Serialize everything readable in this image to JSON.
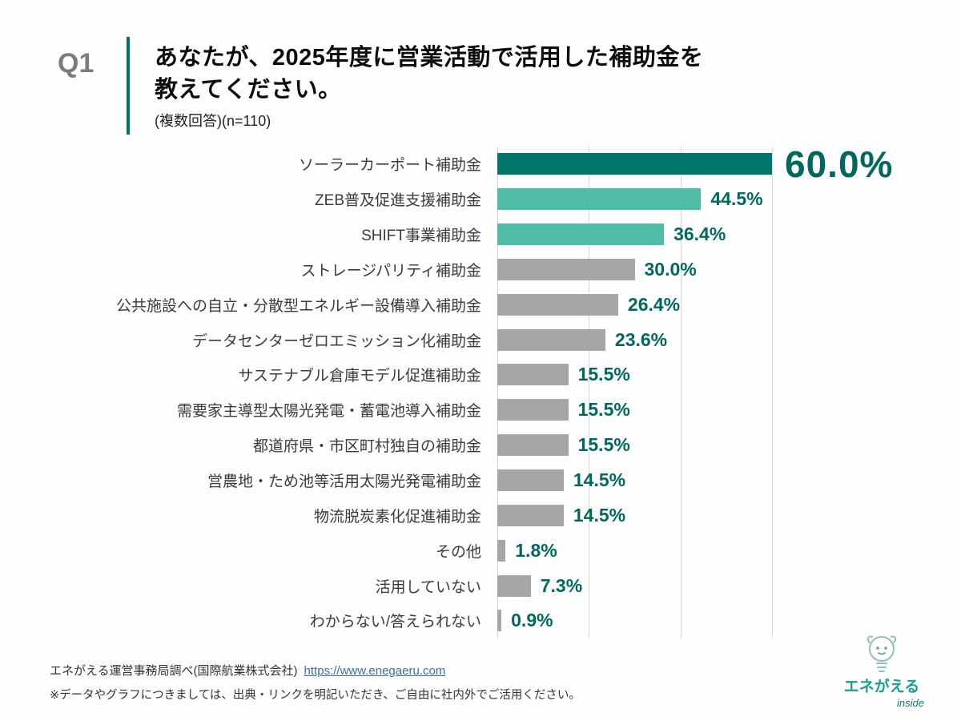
{
  "header": {
    "q_label": "Q1",
    "title_line1": "あなたが、2025年度に営業活動で活用した補助金を",
    "title_line2": "教えてください。",
    "subtitle": "(複数回答)(n=110)"
  },
  "chart_data": {
    "type": "bar",
    "orientation": "horizontal",
    "title": "あなたが、2025年度に営業活動で活用した補助金を教えてください。",
    "sample_note": "複数回答、n=110",
    "categories": [
      "ソーラーカーポート補助金",
      "ZEB普及促進支援補助金",
      "SHIFT事業補助金",
      "ストレージパリティ補助金",
      "公共施設への自立・分散型エネルギー設備導入補助金",
      "データセンターゼロエミッション化補助金",
      "サステナブル倉庫モデル促進補助金",
      "需要家主導型太陽光発電・蓄電池導入補助金",
      "都道府県・市区町村独自の補助金",
      "営農地・ため池等活用太陽光発電補助金",
      "物流脱炭素化促進補助金",
      "その他",
      "活用していない",
      "わからない/答えられない"
    ],
    "values": [
      60.0,
      44.5,
      36.4,
      30.0,
      26.4,
      23.6,
      15.5,
      15.5,
      15.5,
      14.5,
      14.5,
      1.8,
      7.3,
      0.9
    ],
    "value_labels": [
      "60.0%",
      "44.5%",
      "36.4%",
      "30.0%",
      "26.4%",
      "23.6%",
      "15.5%",
      "15.5%",
      "15.5%",
      "14.5%",
      "14.5%",
      "1.8%",
      "7.3%",
      "0.9%"
    ],
    "bar_colors": [
      "#00756a",
      "#4fbca6",
      "#4fbca6",
      "#a6a6a6",
      "#a6a6a6",
      "#a6a6a6",
      "#a6a6a6",
      "#a6a6a6",
      "#a6a6a6",
      "#a6a6a6",
      "#a6a6a6",
      "#a6a6a6",
      "#a6a6a6",
      "#a6a6a6"
    ],
    "xlim": [
      0,
      60
    ],
    "gridline_step_pct": 20,
    "grid": true,
    "legend": false,
    "highlight_index": 0,
    "colors": {
      "primary": "#00756a",
      "secondary": "#4fbca6",
      "neutral": "#a6a6a6",
      "value_text": "#00695e",
      "gridline": "#d8d8d8"
    }
  },
  "footer": {
    "source_text": "エネがえる運営事務局調べ(国際航業株式会社)",
    "link_text": "https://www.enegaeru.com",
    "note": "※データやグラフにつきましては、出典・リンクを明記いただき、ご自由に社内外でご活用ください。"
  },
  "logo": {
    "brand": "エネがえる",
    "sub": "inside"
  }
}
